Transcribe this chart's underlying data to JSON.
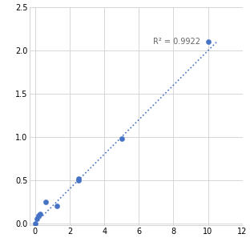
{
  "x_data": [
    0.0,
    0.1,
    0.2,
    0.3,
    0.625,
    1.25,
    2.5,
    2.5,
    5.0,
    10.0
  ],
  "y_data": [
    0.0,
    0.05,
    0.09,
    0.11,
    0.25,
    0.2,
    0.5,
    0.52,
    0.98,
    2.1
  ],
  "trendline_x": [
    0.0,
    10.5
  ],
  "trendline_y": [
    0.0,
    2.1
  ],
  "r2_text": "R² = 0.9922",
  "r2_x": 6.8,
  "r2_y": 2.1,
  "xlim": [
    -0.3,
    12
  ],
  "ylim": [
    -0.02,
    2.5
  ],
  "xticks": [
    0,
    2,
    4,
    6,
    8,
    10,
    12
  ],
  "yticks": [
    0,
    0.5,
    1.0,
    1.5,
    2.0,
    2.5
  ],
  "marker_color": "#4472C4",
  "marker_size": 4.5,
  "line_color": "#4472C4",
  "line_style": "dotted",
  "line_width": 1.2,
  "background_color": "#ffffff",
  "grid_color": "#d0d0d0",
  "tick_label_fontsize": 7,
  "annotation_fontsize": 7
}
